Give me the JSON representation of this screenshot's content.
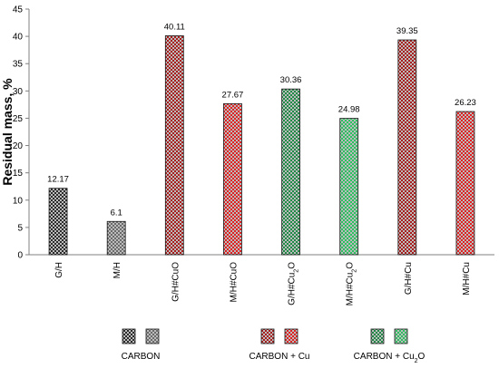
{
  "chart_data": {
    "type": "bar",
    "ylabel": "Residual mass, %",
    "ylim": [
      0,
      45
    ],
    "yticks": [
      0,
      5,
      10,
      15,
      20,
      25,
      30,
      35,
      40,
      45
    ],
    "grid": false,
    "categories": [
      "G/H",
      "M/H",
      "G/H#CuO",
      "M/H#CuO",
      "G/H#Cu₂O",
      "M/H#Cu₂O",
      "G/H#Cu",
      "M/H#Cu"
    ],
    "values": [
      12.17,
      6.1,
      40.11,
      27.67,
      30.36,
      24.98,
      39.35,
      26.23
    ],
    "data_labels": [
      "12.17",
      "6.1",
      "40.11",
      "27.67",
      "30.36",
      "24.98",
      "39.35",
      "26.23"
    ],
    "bar_groups": [
      "carbon_dark",
      "carbon_light",
      "cu_dark",
      "cu_bright",
      "cu2o_dark",
      "cu2o_bright",
      "cu_dark",
      "cu_bright"
    ],
    "legend": {
      "placement": "bottom",
      "entries": [
        {
          "label": "CARBON",
          "swatches": [
            "carbon_dark",
            "carbon_light"
          ]
        },
        {
          "label": "CARBON + Cu",
          "swatches": [
            "cu_dark",
            "cu_bright"
          ]
        },
        {
          "label": "CARBON + Cu₂O",
          "swatches": [
            "cu2o_dark",
            "cu2o_bright"
          ]
        }
      ]
    },
    "colors": {
      "carbon_dark": "#2b2b2b",
      "carbon_light": "#6a6a6a",
      "cu_dark": "#a81c1c",
      "cu_bright": "#e02020",
      "cu2o_dark": "#1f8a45",
      "cu2o_bright": "#2cc060",
      "pattern_light": "#bcbcbc"
    }
  }
}
